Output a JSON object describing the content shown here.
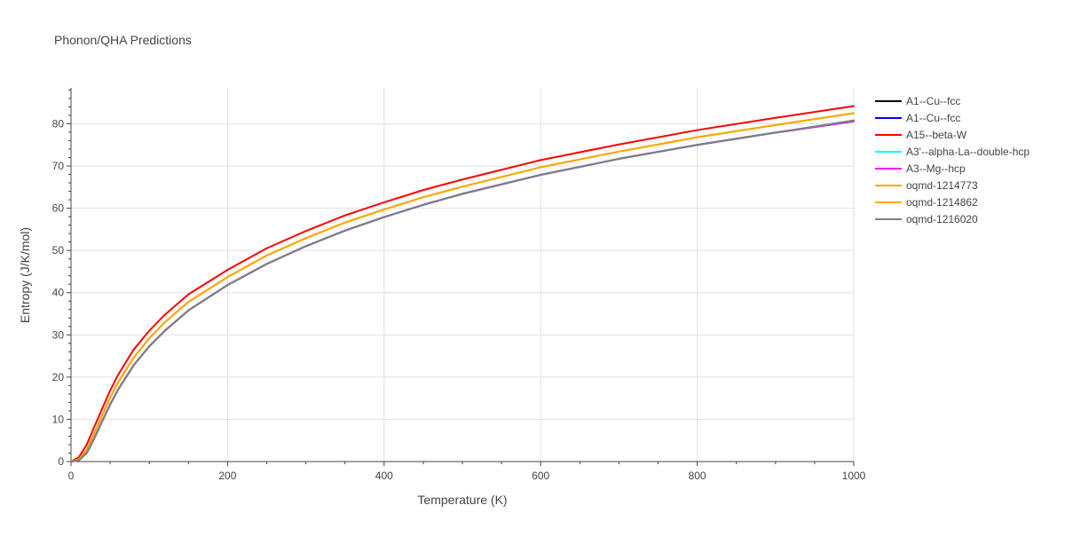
{
  "chart_data": {
    "type": "line",
    "title": "Phonon/QHA Predictions",
    "xlabel": "Temperature (K)",
    "ylabel": "Entropy (J/K/mol)",
    "xlim": [
      0,
      1000
    ],
    "ylim": [
      0,
      88.5
    ],
    "x_ticks": [
      0,
      200,
      400,
      600,
      800,
      1000
    ],
    "y_ticks": [
      0,
      10,
      20,
      30,
      40,
      50,
      60,
      70,
      80
    ],
    "grid": true,
    "legend_position": "right",
    "x": [
      0,
      10,
      20,
      30,
      40,
      50,
      60,
      80,
      100,
      120,
      150,
      200,
      250,
      300,
      350,
      400,
      450,
      500,
      600,
      700,
      800,
      900,
      1000
    ],
    "series": [
      {
        "name": "A1--Cu--fcc",
        "color": "#000000",
        "values": [
          0,
          0.3,
          2.0,
          5.6,
          9.6,
          13.5,
          17.0,
          22.8,
          27.3,
          31.0,
          35.8,
          41.8,
          46.8,
          51.0,
          54.7,
          57.9,
          60.8,
          63.4,
          67.9,
          71.7,
          75.0,
          77.9,
          80.6
        ]
      },
      {
        "name": "A1--Cu--fcc",
        "color": "#0000ff",
        "values": [
          0,
          0.3,
          2.0,
          5.6,
          9.6,
          13.5,
          17.0,
          22.8,
          27.3,
          31.0,
          35.8,
          41.8,
          46.8,
          51.0,
          54.7,
          57.9,
          60.8,
          63.4,
          67.9,
          71.7,
          75.0,
          77.9,
          80.6
        ]
      },
      {
        "name": "A15--beta-W",
        "color": "#ff0000",
        "values": [
          0,
          1.0,
          4.0,
          8.3,
          12.6,
          16.8,
          20.5,
          26.5,
          31.0,
          34.8,
          39.6,
          45.4,
          50.5,
          54.6,
          58.3,
          61.4,
          64.3,
          66.8,
          71.4,
          75.1,
          78.5,
          81.4,
          84.2
        ]
      },
      {
        "name": "A3'--alpha-La--double-hcp",
        "color": "#00ffff",
        "values": [
          0,
          0.3,
          2.0,
          5.6,
          9.6,
          13.5,
          17.0,
          22.8,
          27.3,
          31.0,
          35.8,
          41.8,
          46.8,
          51.0,
          54.7,
          57.9,
          60.8,
          63.4,
          67.9,
          71.7,
          75.0,
          77.9,
          80.6
        ]
      },
      {
        "name": "A3--Mg--hcp",
        "color": "#ff00ff",
        "values": [
          0,
          0.3,
          2.0,
          5.6,
          9.6,
          13.5,
          17.0,
          22.8,
          27.3,
          31.0,
          35.8,
          41.8,
          46.8,
          51.0,
          54.7,
          57.9,
          60.8,
          63.4,
          67.9,
          71.7,
          75.0,
          77.9,
          80.6
        ]
      },
      {
        "name": "oqmd-1214773",
        "color": "#ffa500",
        "values": [
          0,
          0.5,
          2.8,
          6.8,
          11.0,
          15.1,
          18.7,
          24.6,
          29.2,
          33.0,
          37.8,
          43.7,
          48.8,
          52.9,
          56.6,
          59.7,
          62.6,
          65.1,
          69.7,
          73.4,
          76.8,
          79.7,
          82.5
        ]
      },
      {
        "name": "oqmd-1214862",
        "color": "#ffa500",
        "values": [
          0,
          0.5,
          2.8,
          6.8,
          11.0,
          15.1,
          18.7,
          24.6,
          29.2,
          33.0,
          37.8,
          43.7,
          48.8,
          52.9,
          56.6,
          59.7,
          62.6,
          65.1,
          69.7,
          73.4,
          76.8,
          79.7,
          82.5
        ]
      },
      {
        "name": "oqmd-1216020",
        "color": "#808080",
        "values": [
          0,
          0.3,
          2.0,
          5.6,
          9.6,
          13.5,
          17.0,
          22.8,
          27.3,
          31.0,
          35.8,
          41.8,
          46.8,
          51.0,
          54.7,
          57.9,
          60.8,
          63.4,
          67.9,
          71.7,
          75.0,
          77.9,
          80.8
        ]
      }
    ]
  }
}
